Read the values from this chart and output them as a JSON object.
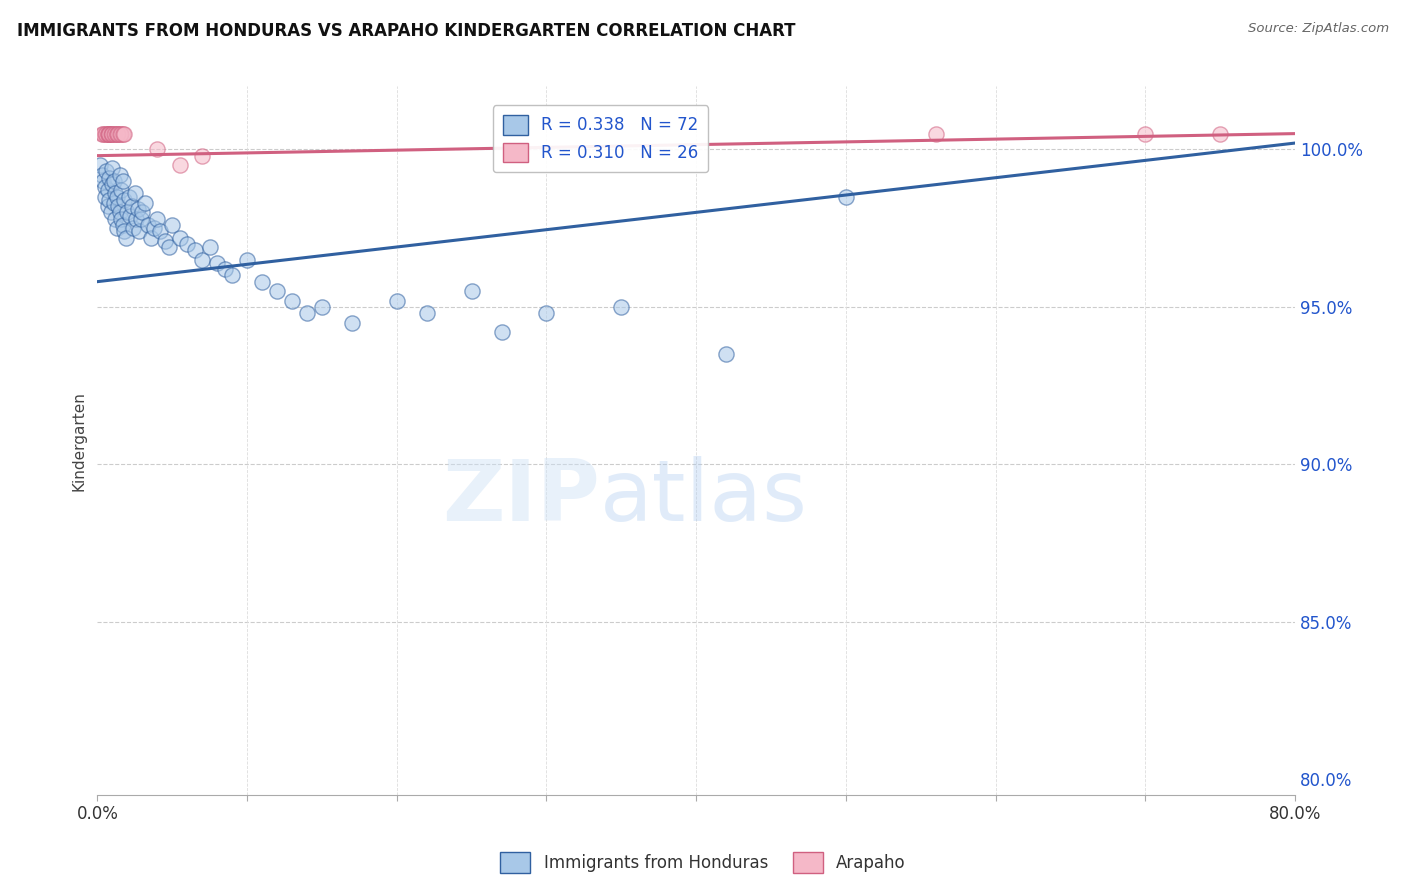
{
  "title": "IMMIGRANTS FROM HONDURAS VS ARAPAHO KINDERGARTEN CORRELATION CHART",
  "source": "Source: ZipAtlas.com",
  "ylabel": "Kindergarten",
  "xlim": [
    0.0,
    0.8
  ],
  "ylim": [
    79.5,
    102.0
  ],
  "yticks": [
    80.0,
    85.0,
    90.0,
    95.0,
    100.0
  ],
  "ytick_labels": [
    "80.0%",
    "85.0%",
    "90.0%",
    "95.0%",
    "100.0%"
  ],
  "color_blue": "#a8c8e8",
  "color_pink": "#f5b8c8",
  "line_color_blue": "#3060a0",
  "line_color_pink": "#d06080",
  "blue_scatter_x": [
    0.002,
    0.003,
    0.004,
    0.005,
    0.005,
    0.006,
    0.007,
    0.007,
    0.008,
    0.008,
    0.009,
    0.01,
    0.01,
    0.011,
    0.011,
    0.012,
    0.012,
    0.013,
    0.013,
    0.014,
    0.015,
    0.015,
    0.016,
    0.016,
    0.017,
    0.017,
    0.018,
    0.018,
    0.019,
    0.02,
    0.021,
    0.022,
    0.023,
    0.024,
    0.025,
    0.026,
    0.027,
    0.028,
    0.029,
    0.03,
    0.032,
    0.034,
    0.036,
    0.038,
    0.04,
    0.042,
    0.045,
    0.048,
    0.05,
    0.055,
    0.06,
    0.065,
    0.07,
    0.075,
    0.08,
    0.085,
    0.09,
    0.1,
    0.11,
    0.12,
    0.13,
    0.14,
    0.15,
    0.17,
    0.2,
    0.22,
    0.25,
    0.27,
    0.3,
    0.35,
    0.42,
    0.5
  ],
  "blue_scatter_y": [
    99.5,
    99.2,
    99.0,
    98.8,
    98.5,
    99.3,
    98.7,
    98.2,
    99.1,
    98.4,
    98.0,
    99.4,
    98.9,
    99.0,
    98.3,
    98.6,
    97.8,
    98.5,
    97.5,
    98.2,
    99.2,
    98.0,
    97.8,
    98.7,
    97.6,
    99.0,
    97.4,
    98.4,
    97.2,
    98.0,
    98.5,
    97.9,
    98.2,
    97.5,
    98.6,
    97.8,
    98.1,
    97.4,
    97.8,
    98.0,
    98.3,
    97.6,
    97.2,
    97.5,
    97.8,
    97.4,
    97.1,
    96.9,
    97.6,
    97.2,
    97.0,
    96.8,
    96.5,
    96.9,
    96.4,
    96.2,
    96.0,
    96.5,
    95.8,
    95.5,
    95.2,
    94.8,
    95.0,
    94.5,
    95.2,
    94.8,
    95.5,
    94.2,
    94.8,
    95.0,
    93.5,
    98.5
  ],
  "pink_scatter_x": [
    0.003,
    0.004,
    0.005,
    0.006,
    0.007,
    0.007,
    0.008,
    0.008,
    0.009,
    0.01,
    0.01,
    0.011,
    0.012,
    0.013,
    0.013,
    0.014,
    0.015,
    0.016,
    0.017,
    0.018,
    0.04,
    0.055,
    0.07,
    0.56,
    0.7,
    0.75
  ],
  "pink_scatter_y": [
    100.5,
    100.5,
    100.5,
    100.5,
    100.5,
    100.5,
    100.5,
    100.5,
    100.5,
    100.5,
    100.5,
    100.5,
    100.5,
    100.5,
    100.5,
    100.5,
    100.5,
    100.5,
    100.5,
    100.5,
    100.0,
    99.5,
    99.8,
    100.5,
    100.5,
    100.5
  ],
  "blue_trend_x": [
    0.0,
    0.8
  ],
  "blue_trend_y": [
    95.8,
    100.2
  ],
  "pink_trend_x": [
    0.0,
    0.8
  ],
  "pink_trend_y": [
    99.8,
    100.5
  ]
}
